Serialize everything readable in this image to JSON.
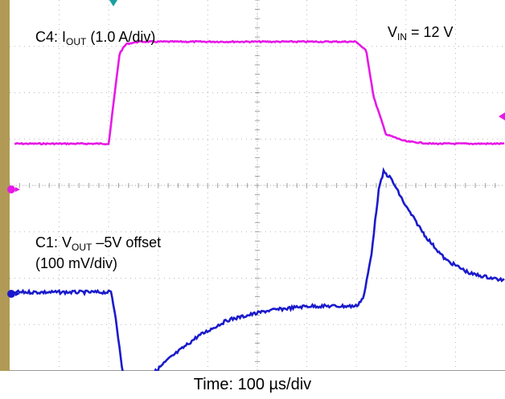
{
  "chart_data": {
    "type": "line",
    "x_unit": "µs",
    "x_range": [
      0,
      1000
    ],
    "grid": true,
    "channels": [
      {
        "id": "C4",
        "prefix": "C4: I",
        "sub": "OUT",
        "suffix": " (1.0 A/div)",
        "color": "#e619e6",
        "ground_marker_color": "#e619e6",
        "scale_per_div": 1.0,
        "unit": "A",
        "points": [
          [
            0,
            0
          ],
          [
            200,
            0
          ],
          [
            210,
            0.9
          ],
          [
            222,
            1.95
          ],
          [
            235,
            2.15
          ],
          [
            260,
            2.2
          ],
          [
            700,
            2.2
          ],
          [
            720,
            2.0
          ],
          [
            735,
            1.0
          ],
          [
            760,
            0.2
          ],
          [
            800,
            0.05
          ],
          [
            850,
            0.0
          ],
          [
            1000,
            0.0
          ]
        ]
      },
      {
        "id": "C1",
        "prefix": "C1: V",
        "sub": "OUT",
        "suffix": " –5V offset",
        "line2": "(100 mV/div)",
        "color": "#1a1acc",
        "ground_marker_color": "#1a1acc",
        "scale_per_div": 100,
        "unit": "mV",
        "points": [
          [
            0,
            0
          ],
          [
            205,
            0
          ],
          [
            215,
            -60
          ],
          [
            225,
            -150
          ],
          [
            235,
            -215
          ],
          [
            245,
            -238
          ],
          [
            258,
            -220
          ],
          [
            280,
            -185
          ],
          [
            320,
            -145
          ],
          [
            380,
            -95
          ],
          [
            440,
            -60
          ],
          [
            520,
            -40
          ],
          [
            600,
            -30
          ],
          [
            700,
            -30
          ],
          [
            715,
            -10
          ],
          [
            730,
            80
          ],
          [
            745,
            220
          ],
          [
            755,
            260
          ],
          [
            770,
            245
          ],
          [
            800,
            185
          ],
          [
            840,
            120
          ],
          [
            880,
            70
          ],
          [
            930,
            40
          ],
          [
            1000,
            25
          ]
        ]
      }
    ],
    "annotation_top_right": {
      "prefix": "V",
      "sub": "IN",
      "suffix": " = 12 V"
    },
    "xlabel": "Time: 100 µs/div"
  }
}
